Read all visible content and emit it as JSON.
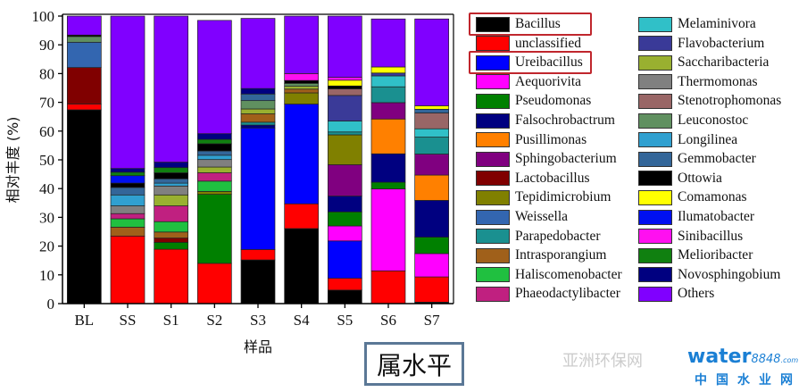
{
  "chart_data": {
    "type": "bar",
    "stacked": true,
    "categories": [
      "BL",
      "SS",
      "S1",
      "S2",
      "S3",
      "S4",
      "S5",
      "S6",
      "S7"
    ],
    "xlabel": "样品",
    "ylabel": "相对丰度 (%)",
    "ylim": [
      0,
      100
    ],
    "yticks": [
      0,
      10,
      20,
      30,
      40,
      50,
      60,
      70,
      80,
      90,
      100
    ],
    "grid": false,
    "legend_position": "right",
    "highlighted_legend_entries": [
      "Bacillus",
      "Ureibacillus"
    ],
    "highlight_color": "#c0262d",
    "series": [
      {
        "name": "Bacillus",
        "color": "#000000",
        "values": [
          67.4,
          0,
          0,
          0,
          15.2,
          26.1,
          4.7,
          0,
          0.5
        ]
      },
      {
        "name": "unclassified",
        "color": "#ff0000",
        "values": [
          2,
          23.5,
          18.9,
          14,
          3.6,
          8.6,
          4.1,
          11.4,
          8.8
        ]
      },
      {
        "name": "Ureibacillus",
        "color": "#0000ff",
        "values": [
          0,
          0,
          0,
          0,
          42.3,
          34.7,
          13,
          0,
          0
        ]
      },
      {
        "name": "Aequorivita",
        "color": "#ff00ff",
        "values": [
          0,
          0,
          0,
          0,
          0,
          0,
          5.2,
          28.5,
          8.1
        ]
      },
      {
        "name": "Pseudomonas",
        "color": "#008000",
        "values": [
          0,
          0,
          2.4,
          24,
          0,
          0,
          4.9,
          2.3,
          5.7
        ]
      },
      {
        "name": "Falsochrobactrum",
        "color": "#000080",
        "values": [
          0,
          0,
          0,
          0,
          1,
          0,
          5.5,
          9.9,
          12.8
        ]
      },
      {
        "name": "Pusillimonas",
        "color": "#ff8000",
        "values": [
          0,
          0,
          0,
          0,
          0,
          0,
          0,
          12.1,
          8.8
        ]
      },
      {
        "name": "Sphingobacterium",
        "color": "#800080",
        "values": [
          0,
          0,
          0,
          0,
          0,
          0,
          10.9,
          5.7,
          7.3
        ]
      },
      {
        "name": "Lactobacillus",
        "color": "#800000",
        "values": [
          12.7,
          0,
          1.5,
          0,
          0,
          0,
          0,
          0,
          0
        ]
      },
      {
        "name": "Tepidimicrobium",
        "color": "#808000",
        "values": [
          0,
          0,
          0,
          1,
          0,
          3.9,
          10.4,
          0,
          0
        ]
      },
      {
        "name": "Weissella",
        "color": "#3366b0",
        "values": [
          8.8,
          0,
          0,
          0,
          0,
          0,
          0,
          0,
          0
        ]
      },
      {
        "name": "Parapedobacter",
        "color": "#1a9090",
        "values": [
          0,
          0,
          0,
          0,
          1,
          0,
          1,
          5.5,
          5.9
        ]
      },
      {
        "name": "Intrasporangium",
        "color": "#a0601a",
        "values": [
          0,
          3.1,
          2.1,
          0,
          2.9,
          1.3,
          0,
          0,
          0
        ]
      },
      {
        "name": "Haliscomenobacter",
        "color": "#20c040",
        "values": [
          0,
          2.9,
          3.6,
          3.6,
          0,
          0,
          0,
          0,
          0
        ]
      },
      {
        "name": "Phaeodactylibacter",
        "color": "#c02080",
        "values": [
          0,
          1.8,
          5.5,
          2.9,
          0,
          0,
          0,
          0,
          0
        ]
      },
      {
        "name": "Melaminivora",
        "color": "#30c0c8",
        "values": [
          0,
          0,
          0,
          0,
          0,
          0,
          3.8,
          3.8,
          2.9
        ]
      },
      {
        "name": "Flavobacterium",
        "color": "#3a3a98",
        "values": [
          0,
          0,
          0,
          0,
          0,
          0,
          8.9,
          1,
          0
        ]
      },
      {
        "name": "Saccharibacteria",
        "color": "#99b030",
        "values": [
          0,
          0,
          3.8,
          2,
          1.7,
          1,
          0,
          0,
          0
        ]
      },
      {
        "name": "Thermomonas",
        "color": "#808080",
        "values": [
          0,
          2.7,
          3.1,
          2.6,
          0,
          0,
          0,
          0,
          0
        ]
      },
      {
        "name": "Stenotrophomonas",
        "color": "#996666",
        "values": [
          0,
          0,
          0,
          0,
          0,
          0,
          2.3,
          0,
          5.5
        ]
      },
      {
        "name": "Leuconostoc",
        "color": "#609060",
        "values": [
          2,
          0,
          0,
          0,
          2.9,
          1,
          0,
          0,
          0
        ]
      },
      {
        "name": "Longilinea",
        "color": "#30a0d0",
        "values": [
          0,
          3.8,
          1,
          1.5,
          0,
          0,
          0,
          0,
          0
        ]
      },
      {
        "name": "Gemmobacter",
        "color": "#336699",
        "values": [
          0,
          2.6,
          1.5,
          1.5,
          2.3,
          0,
          0,
          0,
          1.3
        ]
      },
      {
        "name": "Ottowia",
        "color": "#000000",
        "values": [
          0.5,
          1.5,
          2.1,
          2.5,
          0,
          1,
          1,
          0,
          0
        ]
      },
      {
        "name": "Comamonas",
        "color": "#ffff00",
        "values": [
          0,
          0,
          0,
          0,
          0,
          0,
          2,
          2.1,
          1.2
        ]
      },
      {
        "name": "Ilumatobacter",
        "color": "#0010f0",
        "values": [
          0,
          2.6,
          0,
          0,
          0,
          0,
          0,
          0,
          0
        ]
      },
      {
        "name": "Sinibacillus",
        "color": "#ff10f0",
        "values": [
          0,
          0,
          0,
          0,
          0,
          2.4,
          1,
          0,
          0
        ]
      },
      {
        "name": "Melioribacter",
        "color": "#108010",
        "values": [
          0,
          1.2,
          1.8,
          1.5,
          0,
          0,
          0,
          0,
          0
        ]
      },
      {
        "name": "Novosphingobium",
        "color": "#000080",
        "values": [
          0,
          1.3,
          1.9,
          2,
          1.9,
          0,
          0,
          0,
          0
        ]
      },
      {
        "name": "Others",
        "color": "#8000ff",
        "values": [
          6.6,
          53,
          50.8,
          39.4,
          24.4,
          20,
          21.3,
          16.7,
          30.2
        ]
      }
    ]
  },
  "level_label": "属水平",
  "watermark": {
    "logo_main": "water",
    "logo_num": "8848",
    "logo_suffix": ".com",
    "subtitle": "中国水业网",
    "faint_text": "亚洲环保网"
  }
}
